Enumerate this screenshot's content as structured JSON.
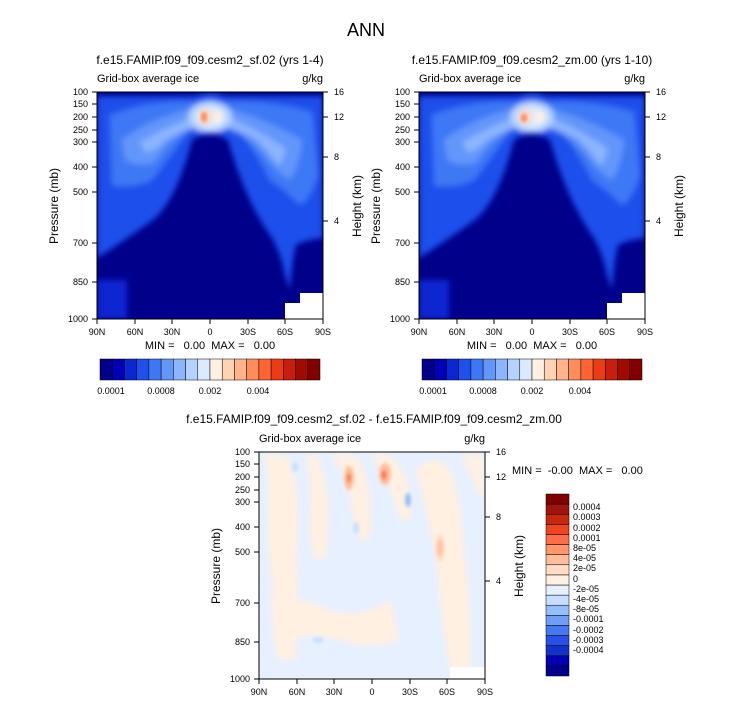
{
  "main_title": "ANN",
  "colors": {
    "bg": "#00008b",
    "levels_abs": [
      "#00008b",
      "#0000b4",
      "#0a28d2",
      "#1e50eb",
      "#3c78f5",
      "#6496fa",
      "#8cb4ff",
      "#b4d2ff",
      "#dceaff",
      "#fff0e1",
      "#ffd2b4",
      "#ffb48c",
      "#ff8c5a",
      "#ff6432",
      "#eb3c14",
      "#c81e0a",
      "#a00a00",
      "#820000"
    ],
    "levels_diff": [
      "#00008b",
      "#0000b4",
      "#1432c8",
      "#2850e6",
      "#4678f0",
      "#6e9ef5",
      "#96bef8",
      "#c8deff",
      "#e6f0ff",
      "#fff0e1",
      "#ffdcc3",
      "#ffbe9b",
      "#ff966e",
      "#ff6e46",
      "#f0461e",
      "#c8280a",
      "#a0140a",
      "#800000"
    ]
  },
  "labels": {
    "panel_subtitle": "Grid-box average ice",
    "units": "g/kg",
    "y_left": "Pressure (mb)",
    "y_right": "Height (km)"
  },
  "chart_data": [
    {
      "type": "heatmap",
      "title": "f.e15.FAMIP.f09_f09.cesm2_sf.02 (yrs 1-4)",
      "subtitle": "Grid-box average ice",
      "units": "g/kg",
      "xlabel": "",
      "ylabel": "Pressure (mb)",
      "ylabel_right": "Height (km)",
      "x_ticks": [
        "90N",
        "60N",
        "30N",
        "0",
        "30S",
        "60S",
        "90S"
      ],
      "y_ticks": [
        "100",
        "150",
        "200",
        "250",
        "300",
        "400",
        "500",
        "700",
        "850",
        "1000"
      ],
      "y_right_ticks": [
        "16",
        "12",
        "8",
        "4"
      ],
      "stats": "MIN =   0.00  MAX =   0.00",
      "colorbar_labels": [
        "0.0001",
        "0.0008",
        "0.002",
        "0.004"
      ],
      "peak_region": {
        "lat": 0,
        "pressure_mb": 200
      }
    },
    {
      "type": "heatmap",
      "title": "f.e15.FAMIP.f09_f09.cesm2_zm.00 (yrs 1-10)",
      "subtitle": "Grid-box average ice",
      "units": "g/kg",
      "xlabel": "",
      "ylabel": "Pressure (mb)",
      "ylabel_right": "Height (km)",
      "x_ticks": [
        "90N",
        "60N",
        "30N",
        "0",
        "30S",
        "60S",
        "90S"
      ],
      "y_ticks": [
        "100",
        "150",
        "200",
        "250",
        "300",
        "400",
        "500",
        "700",
        "850",
        "1000"
      ],
      "y_right_ticks": [
        "16",
        "12",
        "8",
        "4"
      ],
      "stats": "MIN =   0.00  MAX =   0.00",
      "colorbar_labels": [
        "0.0001",
        "0.0008",
        "0.002",
        "0.004"
      ],
      "peak_region": {
        "lat": 0,
        "pressure_mb": 200
      }
    },
    {
      "type": "heatmap",
      "title": "f.e15.FAMIP.f09_f09.cesm2_sf.02 - f.e15.FAMIP.f09_f09.cesm2_zm.00",
      "subtitle": "Grid-box average ice",
      "units": "g/kg",
      "xlabel": "",
      "ylabel": "Pressure (mb)",
      "ylabel_right": "Height (km)",
      "x_ticks": [
        "90N",
        "60N",
        "30N",
        "0",
        "30S",
        "60S",
        "90S"
      ],
      "y_ticks": [
        "100",
        "150",
        "200",
        "250",
        "300",
        "400",
        "500",
        "700",
        "850",
        "1000"
      ],
      "y_right_ticks": [
        "16",
        "12",
        "8",
        "4"
      ],
      "stats": "MIN =  -0.00  MAX =   0.00",
      "colorbar_labels": [
        "0.0004",
        "0.0003",
        "0.0002",
        "0.0001",
        "8e-05",
        "4e-05",
        "2e-05",
        "0",
        "-2e-05",
        "-4e-05",
        "-8e-05",
        "-0.0001",
        "-0.0002",
        "-0.0003",
        "-0.0004"
      ]
    }
  ]
}
